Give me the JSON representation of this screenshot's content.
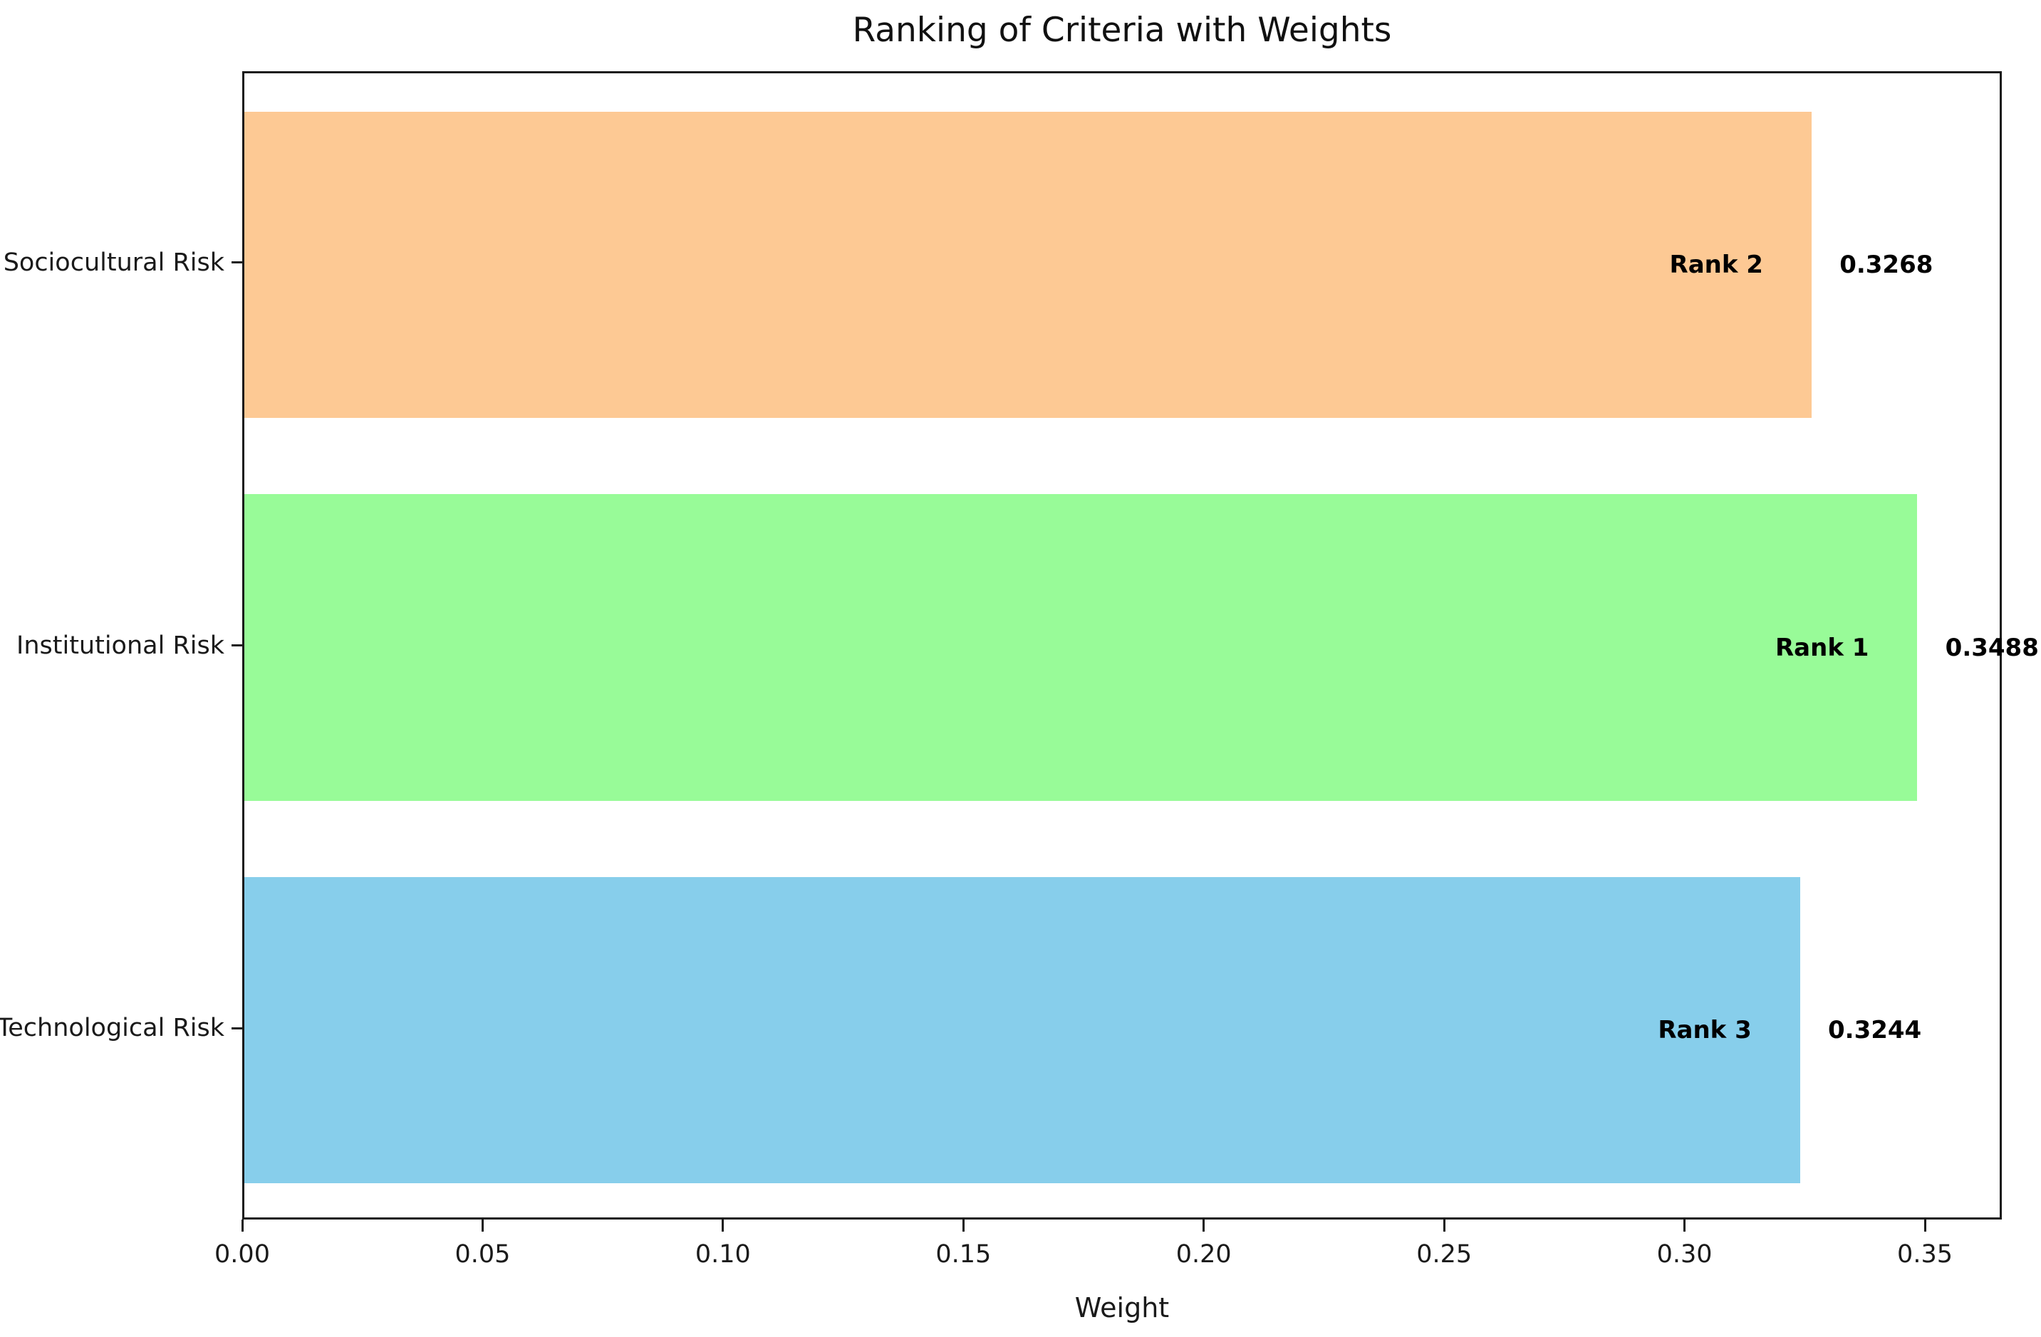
{
  "chart_data": {
    "type": "bar",
    "orientation": "horizontal",
    "title": "Ranking of Criteria with Weights",
    "xlabel": "Weight",
    "ylabel": "",
    "categories": [
      "Sociocultural Risk",
      "Institutional Risk",
      "Technological Risk"
    ],
    "series": [
      {
        "name": "Weight",
        "values": [
          0.3268,
          0.3488,
          0.3244
        ]
      }
    ],
    "bar_annotations": {
      "ranks": [
        "Rank 2",
        "Rank 1",
        "Rank 3"
      ],
      "value_labels": [
        "0.3268",
        "0.3488",
        "0.3244"
      ]
    },
    "bar_colors": [
      "#fdc994",
      "#98fb98",
      "#87ceeb"
    ],
    "xlim": [
      0,
      0.366
    ],
    "xticks": [
      0.0,
      0.05,
      0.1,
      0.15,
      0.2,
      0.25,
      0.3,
      0.35
    ],
    "xtick_labels": [
      "0.00",
      "0.05",
      "0.10",
      "0.15",
      "0.20",
      "0.25",
      "0.30",
      "0.35"
    ],
    "bar_height_fraction": 0.8,
    "grid": false,
    "legend": "none",
    "spine_color": "#1a1a1a",
    "background_color": "#ffffff",
    "text_color": "#000000"
  }
}
